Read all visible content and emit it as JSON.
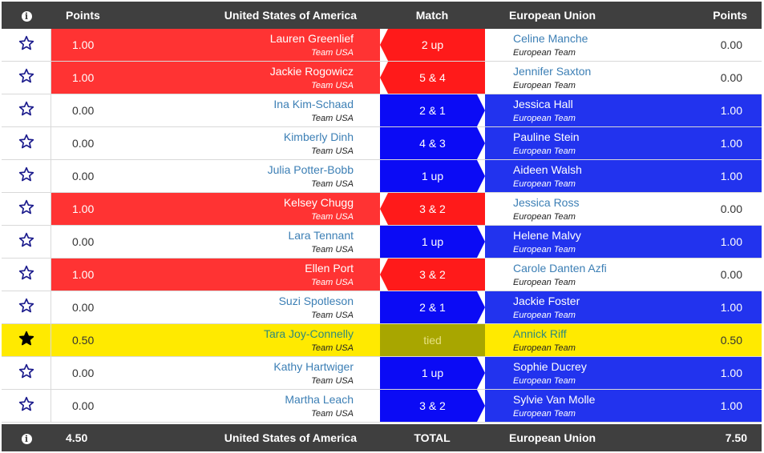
{
  "header": {
    "info_icon": "info-icon",
    "points_left": "Points",
    "team_left": "United States of America",
    "match": "Match",
    "team_right": "European Union",
    "points_right": "Points"
  },
  "colors": {
    "usa_win": "#ff3333",
    "eu_win": "#2233ee",
    "tie": "#ffea00",
    "bar": "#3f3f3f"
  },
  "matches": [
    {
      "us_points": "1.00",
      "us_player": "Lauren Greenlief",
      "us_team": "Team USA",
      "result": "2 up",
      "winner": "us",
      "eu_player": "Celine Manche",
      "eu_team": "European Team",
      "eu_points": "0.00",
      "starred": false
    },
    {
      "us_points": "1.00",
      "us_player": "Jackie Rogowicz",
      "us_team": "Team USA",
      "result": "5 & 4",
      "winner": "us",
      "eu_player": "Jennifer Saxton",
      "eu_team": "European Team",
      "eu_points": "0.00",
      "starred": false
    },
    {
      "us_points": "0.00",
      "us_player": "Ina Kim-Schaad",
      "us_team": "Team USA",
      "result": "2 & 1",
      "winner": "eu",
      "eu_player": "Jessica Hall",
      "eu_team": "European Team",
      "eu_points": "1.00",
      "starred": false
    },
    {
      "us_points": "0.00",
      "us_player": "Kimberly Dinh",
      "us_team": "Team USA",
      "result": "4 & 3",
      "winner": "eu",
      "eu_player": "Pauline Stein",
      "eu_team": "European Team",
      "eu_points": "1.00",
      "starred": false
    },
    {
      "us_points": "0.00",
      "us_player": "Julia Potter-Bobb",
      "us_team": "Team USA",
      "result": "1 up",
      "winner": "eu",
      "eu_player": "Aideen Walsh",
      "eu_team": "European Team",
      "eu_points": "1.00",
      "starred": false
    },
    {
      "us_points": "1.00",
      "us_player": "Kelsey Chugg",
      "us_team": "Team USA",
      "result": "3 & 2",
      "winner": "us",
      "eu_player": "Jessica Ross",
      "eu_team": "European Team",
      "eu_points": "0.00",
      "starred": false
    },
    {
      "us_points": "0.00",
      "us_player": "Lara Tennant",
      "us_team": "Team USA",
      "result": "1 up",
      "winner": "eu",
      "eu_player": "Helene Malvy",
      "eu_team": "European Team",
      "eu_points": "1.00",
      "starred": false
    },
    {
      "us_points": "1.00",
      "us_player": "Ellen Port",
      "us_team": "Team USA",
      "result": "3 & 2",
      "winner": "us",
      "eu_player": "Carole Danten Azfi",
      "eu_team": "European Team",
      "eu_points": "0.00",
      "starred": false
    },
    {
      "us_points": "0.00",
      "us_player": "Suzi Spotleson",
      "us_team": "Team USA",
      "result": "2 & 1",
      "winner": "eu",
      "eu_player": "Jackie Foster",
      "eu_team": "European Team",
      "eu_points": "1.00",
      "starred": false
    },
    {
      "us_points": "0.50",
      "us_player": "Tara Joy-Connelly",
      "us_team": "Team USA",
      "result": "tied",
      "winner": "tie",
      "eu_player": "Annick Riff",
      "eu_team": "European Team",
      "eu_points": "0.50",
      "starred": true
    },
    {
      "us_points": "0.00",
      "us_player": "Kathy Hartwiger",
      "us_team": "Team USA",
      "result": "1 up",
      "winner": "eu",
      "eu_player": "Sophie Ducrey",
      "eu_team": "European Team",
      "eu_points": "1.00",
      "starred": false
    },
    {
      "us_points": "0.00",
      "us_player": "Martha Leach",
      "us_team": "Team USA",
      "result": "3 & 2",
      "winner": "eu",
      "eu_player": "Sylvie Van Molle",
      "eu_team": "European Team",
      "eu_points": "1.00",
      "starred": false
    }
  ],
  "footer": {
    "info_icon": "info-icon",
    "us_total": "4.50",
    "team_left": "United States of America",
    "label": "TOTAL",
    "team_right": "European Union",
    "eu_total": "7.50"
  }
}
